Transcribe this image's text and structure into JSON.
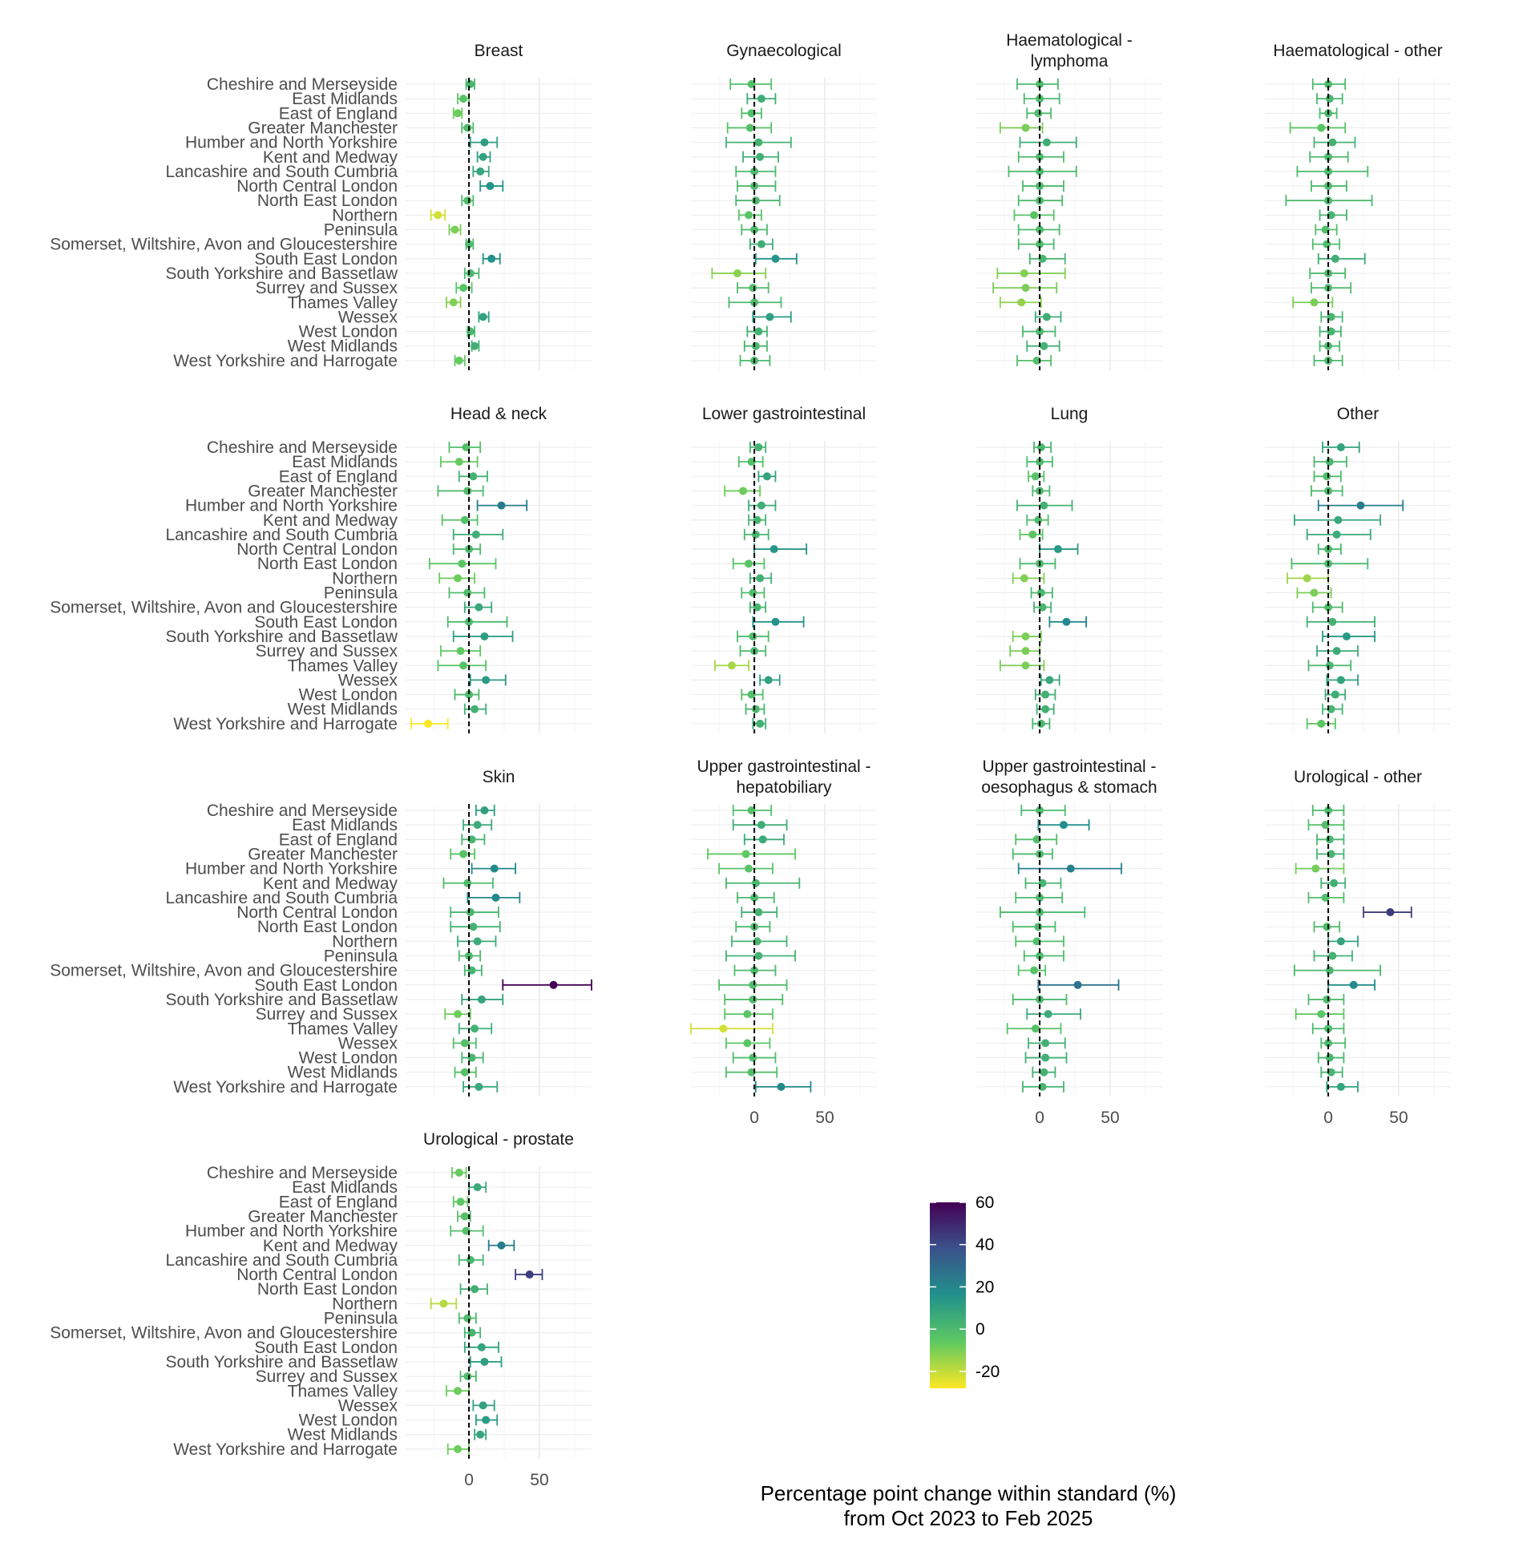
{
  "chart_data": {
    "type": "forest",
    "xlabel": [
      "Percentage point change within standard (%)",
      "from Oct 2023 to Feb 2025"
    ],
    "xticks": [
      0,
      50
    ],
    "xlim": [
      -45,
      87
    ],
    "reference_line_x": 0,
    "regions": [
      "Cheshire and Merseyside",
      "East Midlands",
      "East of England",
      "Greater Manchester",
      "Humber and North Yorkshire",
      "Kent and Medway",
      "Lancashire and South Cumbria",
      "North Central London",
      "North East London",
      "Northern",
      "Peninsula",
      "Somerset, Wiltshire, Avon and Gloucestershire",
      "South East London",
      "South Yorkshire and Bassetlaw",
      "Surrey and Sussex",
      "Thames Valley",
      "Wessex",
      "West London",
      "West Midlands",
      "West Yorkshire and Harrogate"
    ],
    "legend": {
      "ticks": [
        60,
        40,
        20,
        0,
        -20
      ],
      "min": -28,
      "max": 60,
      "colors": [
        "#fde725",
        "#5ec962",
        "#21918c",
        "#3b528b",
        "#440154"
      ]
    },
    "panels": [
      {
        "title": [
          "Breast"
        ],
        "estimates": [
          1,
          -4,
          -8,
          -1,
          11,
          10,
          8,
          15,
          -1,
          -22,
          -10,
          0,
          16,
          1,
          -4,
          -11,
          10,
          1,
          4,
          -7
        ],
        "lower": [
          -2,
          -8,
          -11,
          -5,
          1,
          6,
          3,
          8,
          -5,
          -27,
          -14,
          -2,
          10,
          -3,
          -9,
          -16,
          7,
          -1,
          2,
          -10
        ],
        "upper": [
          4,
          0,
          -5,
          3,
          20,
          15,
          14,
          24,
          3,
          -17,
          -6,
          3,
          22,
          7,
          2,
          -6,
          14,
          4,
          7,
          -3
        ]
      },
      {
        "title": [
          "Gynaecological"
        ],
        "estimates": [
          -2,
          5,
          -2,
          -3,
          3,
          4,
          0,
          0,
          1,
          -4,
          0,
          5,
          15,
          -12,
          -1,
          0,
          11,
          3,
          1,
          0
        ],
        "lower": [
          -17,
          -5,
          -9,
          -19,
          -20,
          -8,
          -13,
          -12,
          -13,
          -11,
          -9,
          -3,
          1,
          -30,
          -12,
          -18,
          -1,
          -5,
          -7,
          -10
        ],
        "upper": [
          12,
          15,
          5,
          12,
          26,
          17,
          15,
          15,
          18,
          5,
          9,
          13,
          30,
          8,
          10,
          19,
          26,
          9,
          9,
          11
        ]
      },
      {
        "title": [
          "Haematological -",
          "lymphoma"
        ],
        "estimates": [
          0,
          0,
          -1,
          -10,
          5,
          0,
          0,
          0,
          0,
          -4,
          0,
          0,
          2,
          -11,
          -10,
          -13,
          5,
          0,
          3,
          -2
        ],
        "lower": [
          -16,
          -11,
          -9,
          -28,
          -14,
          -15,
          -22,
          -12,
          -15,
          -18,
          -15,
          -15,
          -7,
          -30,
          -33,
          -28,
          -3,
          -12,
          -9,
          -16
        ],
        "upper": [
          13,
          14,
          8,
          2,
          26,
          17,
          26,
          17,
          16,
          10,
          14,
          10,
          18,
          18,
          12,
          1,
          15,
          11,
          14,
          8
        ]
      },
      {
        "title": [
          "Haematological - other"
        ],
        "estimates": [
          0,
          1,
          0,
          -5,
          3,
          0,
          0,
          0,
          0,
          2,
          -2,
          -1,
          5,
          0,
          0,
          -10,
          2,
          2,
          0,
          0
        ],
        "lower": [
          -11,
          -8,
          -6,
          -27,
          -10,
          -13,
          -22,
          -12,
          -30,
          -6,
          -9,
          -11,
          -7,
          -13,
          -12,
          -25,
          -5,
          -6,
          -6,
          -10
        ],
        "upper": [
          12,
          10,
          6,
          12,
          19,
          14,
          28,
          13,
          31,
          13,
          6,
          8,
          26,
          12,
          16,
          3,
          10,
          9,
          8,
          10
        ]
      },
      {
        "title": [
          "Head & neck"
        ],
        "estimates": [
          -2,
          -7,
          3,
          -1,
          23,
          -3,
          5,
          0,
          -5,
          -8,
          -1,
          7,
          0,
          11,
          -6,
          -4,
          12,
          0,
          4,
          -29
        ],
        "lower": [
          -14,
          -20,
          -7,
          -22,
          6,
          -19,
          -11,
          -11,
          -28,
          -21,
          -14,
          -3,
          -15,
          -11,
          -20,
          -22,
          1,
          -10,
          -3,
          -41
        ],
        "upper": [
          8,
          6,
          13,
          10,
          41,
          6,
          24,
          8,
          19,
          4,
          11,
          16,
          27,
          31,
          8,
          12,
          26,
          7,
          12,
          -15
        ]
      },
      {
        "title": [
          "Lower gastrointestinal"
        ],
        "estimates": [
          3,
          -2,
          9,
          -8,
          5,
          2,
          1,
          14,
          -4,
          4,
          -1,
          2,
          15,
          -1,
          0,
          -16,
          10,
          -2,
          1,
          4
        ],
        "lower": [
          -3,
          -11,
          3,
          -21,
          -4,
          -4,
          -7,
          0,
          -15,
          -3,
          -9,
          -3,
          -1,
          -12,
          -10,
          -28,
          4,
          -9,
          -6,
          -1
        ],
        "upper": [
          8,
          6,
          15,
          4,
          15,
          8,
          10,
          37,
          7,
          12,
          7,
          8,
          35,
          10,
          8,
          -4,
          18,
          6,
          7,
          8
        ]
      },
      {
        "title": [
          "Lung"
        ],
        "estimates": [
          1,
          0,
          -3,
          0,
          3,
          -1,
          -5,
          13,
          0,
          -11,
          1,
          2,
          19,
          -10,
          -10,
          -10,
          7,
          4,
          4,
          1
        ],
        "lower": [
          -4,
          -9,
          -8,
          -5,
          -16,
          -9,
          -14,
          0,
          -14,
          -19,
          -6,
          -4,
          7,
          -19,
          -21,
          -28,
          1,
          -3,
          -2,
          -5
        ],
        "upper": [
          8,
          9,
          3,
          7,
          23,
          6,
          2,
          27,
          11,
          3,
          9,
          8,
          33,
          1,
          0,
          3,
          14,
          11,
          10,
          7
        ]
      },
      {
        "title": [
          "Other"
        ],
        "estimates": [
          9,
          1,
          -1,
          0,
          23,
          7,
          6,
          0,
          0,
          -15,
          -10,
          0,
          3,
          13,
          6,
          1,
          9,
          5,
          2,
          -5
        ],
        "lower": [
          -4,
          -10,
          -10,
          -12,
          -7,
          -24,
          -15,
          -7,
          -26,
          -29,
          -22,
          -11,
          -15,
          -4,
          -8,
          -14,
          -1,
          -2,
          -4,
          -15
        ],
        "upper": [
          22,
          13,
          9,
          10,
          53,
          37,
          30,
          9,
          28,
          0,
          2,
          10,
          33,
          33,
          21,
          16,
          21,
          12,
          10,
          5
        ]
      },
      {
        "title": [
          "Skin"
        ],
        "estimates": [
          11,
          6,
          2,
          -4,
          18,
          -1,
          19,
          1,
          3,
          6,
          0,
          2,
          60,
          9,
          -8,
          4,
          -3,
          2,
          -3,
          7
        ],
        "lower": [
          5,
          -4,
          -5,
          -13,
          2,
          -18,
          -1,
          -13,
          -13,
          -8,
          -7,
          -3,
          24,
          -5,
          -17,
          -7,
          -11,
          -5,
          -10,
          -4
        ],
        "upper": [
          18,
          16,
          11,
          4,
          33,
          17,
          36,
          21,
          22,
          19,
          8,
          9,
          87,
          24,
          1,
          16,
          5,
          10,
          5,
          20
        ]
      },
      {
        "title": [
          "Upper gastrointestinal -",
          "hepatobiliary"
        ],
        "estimates": [
          -2,
          5,
          6,
          -6,
          -4,
          1,
          0,
          3,
          0,
          2,
          3,
          0,
          -1,
          -1,
          -5,
          -22,
          -5,
          -1,
          -2,
          19
        ],
        "lower": [
          -15,
          -15,
          -7,
          -33,
          -25,
          -20,
          -12,
          -9,
          -13,
          -16,
          -20,
          -14,
          -25,
          -21,
          -21,
          -45,
          -20,
          -15,
          -20,
          1
        ],
        "upper": [
          12,
          23,
          21,
          29,
          13,
          32,
          14,
          16,
          11,
          23,
          29,
          15,
          23,
          20,
          13,
          13,
          11,
          15,
          16,
          40
        ]
      },
      {
        "title": [
          "Upper gastrointestinal -",
          "oesophagus & stomach"
        ],
        "estimates": [
          0,
          17,
          -2,
          0,
          22,
          2,
          0,
          0,
          -1,
          -2,
          0,
          -4,
          27,
          0,
          6,
          -3,
          4,
          4,
          3,
          2
        ],
        "lower": [
          -13,
          -1,
          -17,
          -19,
          -15,
          -10,
          -17,
          -28,
          -19,
          -17,
          -11,
          -15,
          -1,
          -19,
          -9,
          -23,
          -8,
          -10,
          -5,
          -12
        ],
        "upper": [
          18,
          35,
          12,
          9,
          58,
          15,
          16,
          32,
          11,
          17,
          17,
          4,
          56,
          19,
          29,
          15,
          18,
          19,
          11,
          17
        ]
      },
      {
        "title": [
          "Urological - other"
        ],
        "estimates": [
          0,
          -2,
          1,
          2,
          -9,
          4,
          -2,
          44,
          -1,
          9,
          3,
          1,
          18,
          -1,
          -5,
          0,
          0,
          1,
          2,
          9
        ],
        "lower": [
          -11,
          -14,
          -8,
          -8,
          -23,
          -5,
          -14,
          25,
          -10,
          0,
          -10,
          -24,
          0,
          -14,
          -23,
          -11,
          -5,
          -7,
          -5,
          -1
        ],
        "upper": [
          11,
          11,
          11,
          11,
          11,
          12,
          11,
          59,
          8,
          21,
          17,
          37,
          33,
          11,
          11,
          11,
          12,
          11,
          10,
          21
        ]
      },
      {
        "title": [
          "Urological - prostate"
        ],
        "estimates": [
          -7,
          6,
          -6,
          -3,
          -2,
          23,
          1,
          43,
          4,
          -18,
          -1,
          2,
          9,
          11,
          -1,
          -8,
          10,
          12,
          8,
          -8
        ],
        "lower": [
          -12,
          0,
          -11,
          -8,
          -13,
          14,
          -7,
          33,
          -6,
          -27,
          -7,
          -3,
          -3,
          1,
          -6,
          -16,
          3,
          5,
          4,
          -15
        ],
        "upper": [
          -2,
          12,
          -1,
          1,
          10,
          32,
          10,
          52,
          13,
          -9,
          5,
          8,
          21,
          23,
          5,
          0,
          18,
          20,
          12,
          0
        ]
      }
    ]
  }
}
